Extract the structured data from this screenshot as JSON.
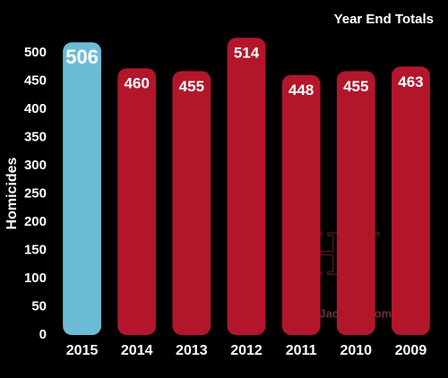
{
  "chart_data": {
    "type": "bar",
    "title": "Year End Totals",
    "y_label": "Homicides",
    "categories": [
      "2015",
      "2014",
      "2013",
      "2012",
      "2011",
      "2010",
      "2009"
    ],
    "values": [
      506,
      460,
      455,
      514,
      448,
      455,
      463
    ],
    "colors": [
      "#6dbcd7",
      "#b3162b",
      "#b3162b",
      "#b3162b",
      "#b3162b",
      "#b3162b",
      "#b3162b"
    ],
    "ylim": [
      0,
      500
    ],
    "yticks": [
      0,
      50,
      100,
      150,
      200,
      250,
      300,
      350,
      400,
      450,
      500
    ],
    "grid": false,
    "watermark": [
      "HJ",
      "©HeyJackass.com"
    ]
  }
}
